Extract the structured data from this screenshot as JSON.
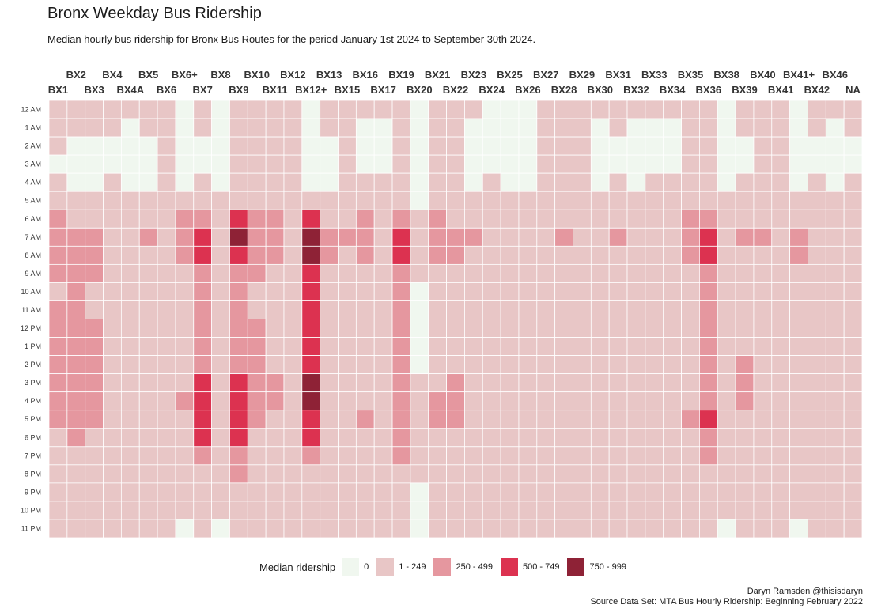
{
  "title": "Bronx Weekday Bus Ridership",
  "subtitle": "Median hourly bus ridership for Bronx Bus Routes for the period January 1st 2024 to September 30th 2024.",
  "caption": {
    "line1": "Daryn Ramsden @thisisdaryn",
    "line2": "Source Data Set: MTA Bus Hourly Ridership: Beginning February 2022"
  },
  "legend": {
    "title": "Median ridership",
    "items": [
      {
        "label": "0",
        "color": "#f0f7ef"
      },
      {
        "label": "1 - 249",
        "color": "#e8c6c6"
      },
      {
        "label": "250 - 499",
        "color": "#e5979f"
      },
      {
        "label": "500 - 749",
        "color": "#dc3250"
      },
      {
        "label": "750 - 999",
        "color": "#8e2236"
      }
    ]
  },
  "chart_data": {
    "type": "heatmap",
    "title": "Bronx Weekday Bus Ridership",
    "xlabel": "",
    "ylabel": "",
    "x_axis_position": "top",
    "legend_position": "bottom",
    "value_encoding": "category index into legend.items (0 = 0, 1 = 1 - 249, 2 = 250 - 499, 3 = 500 - 749, 4 = 750 - 999)",
    "categories": [
      "BX1",
      "BX2",
      "BX3",
      "BX4",
      "BX4A",
      "BX5",
      "BX6",
      "BX6+",
      "BX7",
      "BX8",
      "BX9",
      "BX10",
      "BX11",
      "BX12",
      "BX12+",
      "BX13",
      "BX15",
      "BX16",
      "BX17",
      "BX19",
      "BX20",
      "BX21",
      "BX22",
      "BX23",
      "BX24",
      "BX25",
      "BX26",
      "BX27",
      "BX28",
      "BX29",
      "BX30",
      "BX31",
      "BX32",
      "BX33",
      "BX34",
      "BX35",
      "BX36",
      "BX38",
      "BX39",
      "BX40",
      "BX41",
      "BX41+",
      "BX42",
      "BX46",
      "NA"
    ],
    "hours": [
      "12 AM",
      "1 AM",
      "2 AM",
      "3 AM",
      "4 AM",
      "5 AM",
      "6 AM",
      "7 AM",
      "8 AM",
      "9 AM",
      "10 AM",
      "11 AM",
      "12 PM",
      "1 PM",
      "2 PM",
      "3 PM",
      "4 PM",
      "5 PM",
      "6 PM",
      "7 PM",
      "8 PM",
      "9 PM",
      "10 PM",
      "11 PM"
    ],
    "values": [
      [
        1,
        1,
        1,
        1,
        1,
        1,
        1,
        0,
        1,
        0,
        1,
        1,
        1,
        1,
        0,
        1,
        1,
        1,
        1,
        1,
        0,
        1,
        1,
        1,
        0,
        0,
        0,
        1,
        1,
        1,
        1,
        1,
        1,
        1,
        1,
        1,
        1,
        0,
        1,
        1,
        1,
        0,
        1,
        1,
        1
      ],
      [
        1,
        1,
        1,
        1,
        0,
        1,
        1,
        0,
        1,
        0,
        1,
        1,
        1,
        1,
        0,
        1,
        1,
        0,
        0,
        1,
        0,
        1,
        1,
        0,
        0,
        0,
        0,
        1,
        1,
        1,
        0,
        1,
        0,
        0,
        0,
        1,
        1,
        0,
        1,
        1,
        1,
        0,
        1,
        0,
        1
      ],
      [
        1,
        0,
        0,
        0,
        0,
        0,
        1,
        0,
        0,
        0,
        1,
        1,
        1,
        1,
        0,
        0,
        1,
        0,
        0,
        1,
        0,
        1,
        1,
        0,
        0,
        0,
        0,
        1,
        1,
        1,
        0,
        0,
        0,
        0,
        0,
        1,
        1,
        0,
        0,
        1,
        1,
        0,
        0,
        0,
        0
      ],
      [
        0,
        0,
        0,
        0,
        0,
        0,
        1,
        0,
        0,
        0,
        1,
        1,
        1,
        1,
        0,
        0,
        1,
        0,
        0,
        1,
        0,
        1,
        1,
        0,
        0,
        0,
        0,
        1,
        1,
        1,
        0,
        0,
        0,
        0,
        0,
        1,
        1,
        0,
        0,
        1,
        1,
        0,
        0,
        0,
        0
      ],
      [
        1,
        0,
        0,
        1,
        0,
        0,
        1,
        0,
        1,
        0,
        1,
        1,
        1,
        1,
        0,
        0,
        1,
        1,
        1,
        1,
        0,
        1,
        1,
        0,
        1,
        0,
        0,
        1,
        1,
        1,
        0,
        1,
        0,
        1,
        1,
        1,
        1,
        0,
        1,
        1,
        1,
        0,
        1,
        0,
        1
      ],
      [
        1,
        1,
        1,
        1,
        1,
        1,
        1,
        1,
        1,
        1,
        1,
        1,
        1,
        1,
        1,
        1,
        1,
        1,
        1,
        1,
        0,
        1,
        1,
        1,
        1,
        1,
        1,
        1,
        1,
        1,
        1,
        1,
        1,
        1,
        1,
        1,
        1,
        1,
        1,
        1,
        1,
        1,
        1,
        1,
        1
      ],
      [
        2,
        1,
        1,
        1,
        1,
        1,
        1,
        2,
        2,
        1,
        3,
        2,
        2,
        1,
        3,
        1,
        1,
        2,
        1,
        2,
        1,
        2,
        1,
        1,
        1,
        1,
        1,
        1,
        1,
        1,
        1,
        1,
        1,
        1,
        1,
        2,
        2,
        1,
        1,
        1,
        1,
        1,
        1,
        1,
        1
      ],
      [
        2,
        2,
        2,
        1,
        1,
        2,
        1,
        2,
        3,
        1,
        4,
        2,
        2,
        1,
        4,
        2,
        2,
        2,
        1,
        3,
        1,
        2,
        2,
        2,
        1,
        1,
        1,
        1,
        2,
        1,
        1,
        2,
        1,
        1,
        1,
        2,
        3,
        1,
        2,
        2,
        1,
        2,
        1,
        1,
        1
      ],
      [
        2,
        2,
        2,
        1,
        1,
        1,
        1,
        2,
        3,
        1,
        3,
        2,
        2,
        1,
        4,
        2,
        1,
        2,
        1,
        3,
        1,
        2,
        2,
        1,
        1,
        1,
        1,
        1,
        1,
        1,
        1,
        1,
        1,
        1,
        1,
        2,
        3,
        1,
        1,
        1,
        1,
        2,
        1,
        1,
        1
      ],
      [
        2,
        2,
        2,
        1,
        1,
        1,
        1,
        1,
        2,
        1,
        2,
        2,
        1,
        1,
        3,
        1,
        1,
        1,
        1,
        2,
        1,
        1,
        1,
        1,
        1,
        1,
        1,
        1,
        1,
        1,
        1,
        1,
        1,
        1,
        1,
        1,
        2,
        1,
        1,
        1,
        1,
        1,
        1,
        1,
        1
      ],
      [
        1,
        2,
        1,
        1,
        1,
        1,
        1,
        1,
        2,
        1,
        2,
        1,
        1,
        1,
        3,
        1,
        1,
        1,
        1,
        2,
        0,
        1,
        1,
        1,
        1,
        1,
        1,
        1,
        1,
        1,
        1,
        1,
        1,
        1,
        1,
        1,
        2,
        1,
        1,
        1,
        1,
        1,
        1,
        1,
        1
      ],
      [
        2,
        2,
        1,
        1,
        1,
        1,
        1,
        1,
        2,
        1,
        2,
        1,
        1,
        1,
        3,
        1,
        1,
        1,
        1,
        2,
        0,
        1,
        1,
        1,
        1,
        1,
        1,
        1,
        1,
        1,
        1,
        1,
        1,
        1,
        1,
        1,
        2,
        1,
        1,
        1,
        1,
        1,
        1,
        1,
        1
      ],
      [
        2,
        2,
        2,
        1,
        1,
        1,
        1,
        1,
        2,
        1,
        2,
        2,
        1,
        1,
        3,
        1,
        1,
        1,
        1,
        2,
        0,
        1,
        1,
        1,
        1,
        1,
        1,
        1,
        1,
        1,
        1,
        1,
        1,
        1,
        1,
        1,
        2,
        1,
        1,
        1,
        1,
        1,
        1,
        1,
        1
      ],
      [
        2,
        2,
        2,
        1,
        1,
        1,
        1,
        1,
        2,
        1,
        2,
        2,
        1,
        1,
        3,
        1,
        1,
        1,
        1,
        2,
        0,
        1,
        1,
        1,
        1,
        1,
        1,
        1,
        1,
        1,
        1,
        1,
        1,
        1,
        1,
        1,
        2,
        1,
        1,
        1,
        1,
        1,
        1,
        1,
        1
      ],
      [
        2,
        2,
        2,
        1,
        1,
        1,
        1,
        1,
        2,
        1,
        2,
        2,
        1,
        1,
        3,
        1,
        1,
        1,
        1,
        2,
        0,
        1,
        1,
        1,
        1,
        1,
        1,
        1,
        1,
        1,
        1,
        1,
        1,
        1,
        1,
        1,
        2,
        1,
        2,
        1,
        1,
        1,
        1,
        1,
        1
      ],
      [
        2,
        2,
        2,
        1,
        1,
        1,
        1,
        1,
        3,
        1,
        3,
        2,
        2,
        1,
        4,
        1,
        1,
        1,
        1,
        2,
        1,
        1,
        2,
        1,
        1,
        1,
        1,
        1,
        1,
        1,
        1,
        1,
        1,
        1,
        1,
        1,
        2,
        1,
        2,
        1,
        1,
        1,
        1,
        1,
        1
      ],
      [
        2,
        2,
        2,
        1,
        1,
        1,
        1,
        2,
        3,
        1,
        3,
        2,
        2,
        1,
        4,
        1,
        1,
        1,
        1,
        2,
        1,
        2,
        2,
        1,
        1,
        1,
        1,
        1,
        1,
        1,
        1,
        1,
        1,
        1,
        1,
        1,
        2,
        1,
        2,
        1,
        1,
        1,
        1,
        1,
        1
      ],
      [
        2,
        2,
        2,
        1,
        1,
        1,
        1,
        1,
        3,
        1,
        3,
        2,
        1,
        1,
        3,
        1,
        1,
        2,
        1,
        2,
        1,
        2,
        2,
        1,
        1,
        1,
        1,
        1,
        1,
        1,
        1,
        1,
        1,
        1,
        1,
        2,
        3,
        1,
        1,
        1,
        1,
        1,
        1,
        1,
        1
      ],
      [
        1,
        2,
        1,
        1,
        1,
        1,
        1,
        1,
        3,
        1,
        3,
        1,
        1,
        1,
        3,
        1,
        1,
        1,
        1,
        2,
        1,
        1,
        1,
        1,
        1,
        1,
        1,
        1,
        1,
        1,
        1,
        1,
        1,
        1,
        1,
        1,
        2,
        1,
        1,
        1,
        1,
        1,
        1,
        1,
        1
      ],
      [
        1,
        1,
        1,
        1,
        1,
        1,
        1,
        1,
        2,
        1,
        2,
        1,
        1,
        1,
        2,
        1,
        1,
        1,
        1,
        2,
        1,
        1,
        1,
        1,
        1,
        1,
        1,
        1,
        1,
        1,
        1,
        1,
        1,
        1,
        1,
        1,
        2,
        1,
        1,
        1,
        1,
        1,
        1,
        1,
        1
      ],
      [
        1,
        1,
        1,
        1,
        1,
        1,
        1,
        1,
        1,
        1,
        2,
        1,
        1,
        1,
        1,
        1,
        1,
        1,
        1,
        1,
        1,
        1,
        1,
        1,
        1,
        1,
        1,
        1,
        1,
        1,
        1,
        1,
        1,
        1,
        1,
        1,
        1,
        1,
        1,
        1,
        1,
        1,
        1,
        1,
        1
      ],
      [
        1,
        1,
        1,
        1,
        1,
        1,
        1,
        1,
        1,
        1,
        1,
        1,
        1,
        1,
        1,
        1,
        1,
        1,
        1,
        1,
        0,
        1,
        1,
        1,
        1,
        1,
        1,
        1,
        1,
        1,
        1,
        1,
        1,
        1,
        1,
        1,
        1,
        1,
        1,
        1,
        1,
        1,
        1,
        1,
        1
      ],
      [
        1,
        1,
        1,
        1,
        1,
        1,
        1,
        1,
        1,
        1,
        1,
        1,
        1,
        1,
        1,
        1,
        1,
        1,
        1,
        1,
        0,
        1,
        1,
        1,
        1,
        1,
        1,
        1,
        1,
        1,
        1,
        1,
        1,
        1,
        1,
        1,
        1,
        1,
        1,
        1,
        1,
        1,
        1,
        1,
        1
      ],
      [
        1,
        1,
        1,
        1,
        1,
        1,
        1,
        0,
        1,
        0,
        1,
        1,
        1,
        1,
        1,
        1,
        1,
        1,
        1,
        1,
        0,
        1,
        1,
        1,
        1,
        1,
        1,
        1,
        1,
        1,
        1,
        1,
        1,
        1,
        1,
        1,
        1,
        0,
        1,
        1,
        1,
        0,
        1,
        1,
        1
      ]
    ]
  }
}
